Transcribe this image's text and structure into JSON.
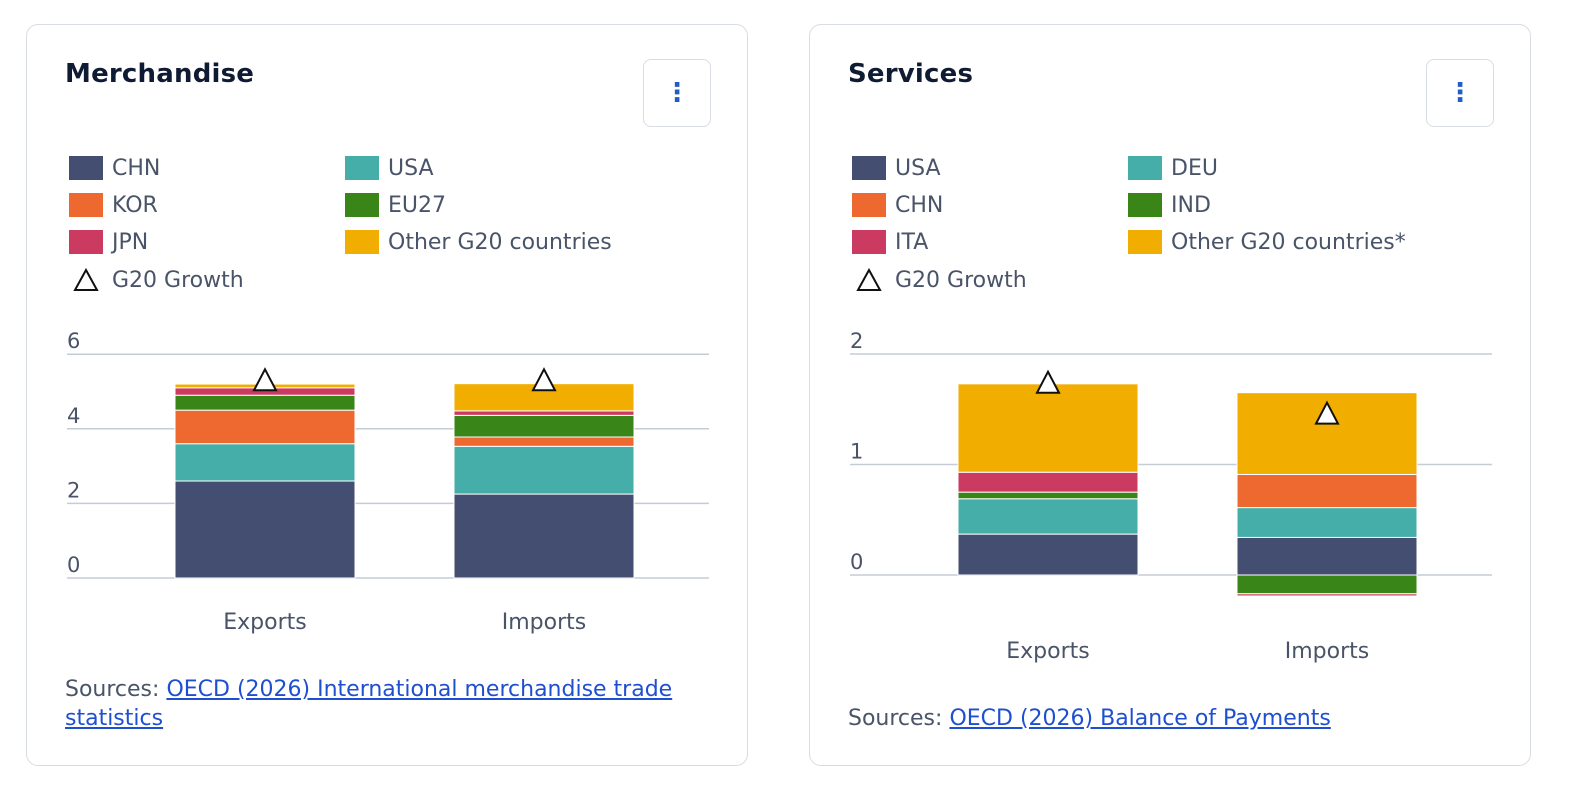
{
  "merchandise": {
    "title": "Merchandise",
    "menu_icon": "more-vertical-icon",
    "growth_label": "G20 Growth",
    "sources_prefix": "Sources: ",
    "sources_link": "OECD (2026) International merchandise trade statistics",
    "chart_data": {
      "type": "bar",
      "stacked": true,
      "categories": [
        "Exports",
        "Imports"
      ],
      "ylim": [
        0,
        6
      ],
      "yticks": [
        0,
        2,
        4,
        6
      ],
      "grid": true,
      "legend_placement": "top",
      "series": [
        {
          "name": "CHN",
          "color": "#444e70",
          "values": [
            2.6,
            2.25
          ]
        },
        {
          "name": "USA",
          "color": "#46aea8",
          "values": [
            1.0,
            1.28
          ]
        },
        {
          "name": "KOR",
          "color": "#ee6930",
          "values": [
            0.9,
            0.25
          ]
        },
        {
          "name": "EU27",
          "color": "#3a8518",
          "values": [
            0.4,
            0.58
          ]
        },
        {
          "name": "JPN",
          "color": "#cb3a60",
          "values": [
            0.2,
            0.12
          ]
        },
        {
          "name": "Other G20 countries",
          "color": "#f2ae00",
          "values": [
            0.1,
            0.73
          ]
        }
      ],
      "growth": {
        "name": "G20 Growth",
        "values": [
          5.3,
          5.3
        ]
      }
    }
  },
  "services": {
    "title": "Services",
    "menu_icon": "more-vertical-icon",
    "growth_label": "G20 Growth",
    "sources_prefix": "Sources: ",
    "sources_link": "OECD (2026) Balance of Payments",
    "chart_data": {
      "type": "bar",
      "stacked": true,
      "categories": [
        "Exports",
        "Imports"
      ],
      "ylim": [
        -0.2,
        2
      ],
      "yticks": [
        0,
        1,
        2
      ],
      "grid": true,
      "legend_placement": "top",
      "series": [
        {
          "name": "USA",
          "color": "#444e70",
          "values": [
            0.37,
            0.34
          ]
        },
        {
          "name": "DEU",
          "color": "#46aea8",
          "values": [
            0.32,
            0.27
          ]
        },
        {
          "name": "CHN",
          "color": "#ee6930",
          "values": [
            0.0,
            0.3
          ]
        },
        {
          "name": "IND",
          "color": "#3a8518",
          "values": [
            0.06,
            -0.17
          ]
        },
        {
          "name": "ITA",
          "color": "#cb3a60",
          "values": [
            0.18,
            -0.02
          ]
        },
        {
          "name": "Other G20 countries*",
          "color": "#f2ae00",
          "values": [
            0.8,
            0.74
          ]
        }
      ],
      "growth": {
        "name": "G20 Growth",
        "values": [
          1.74,
          1.46
        ]
      }
    }
  }
}
